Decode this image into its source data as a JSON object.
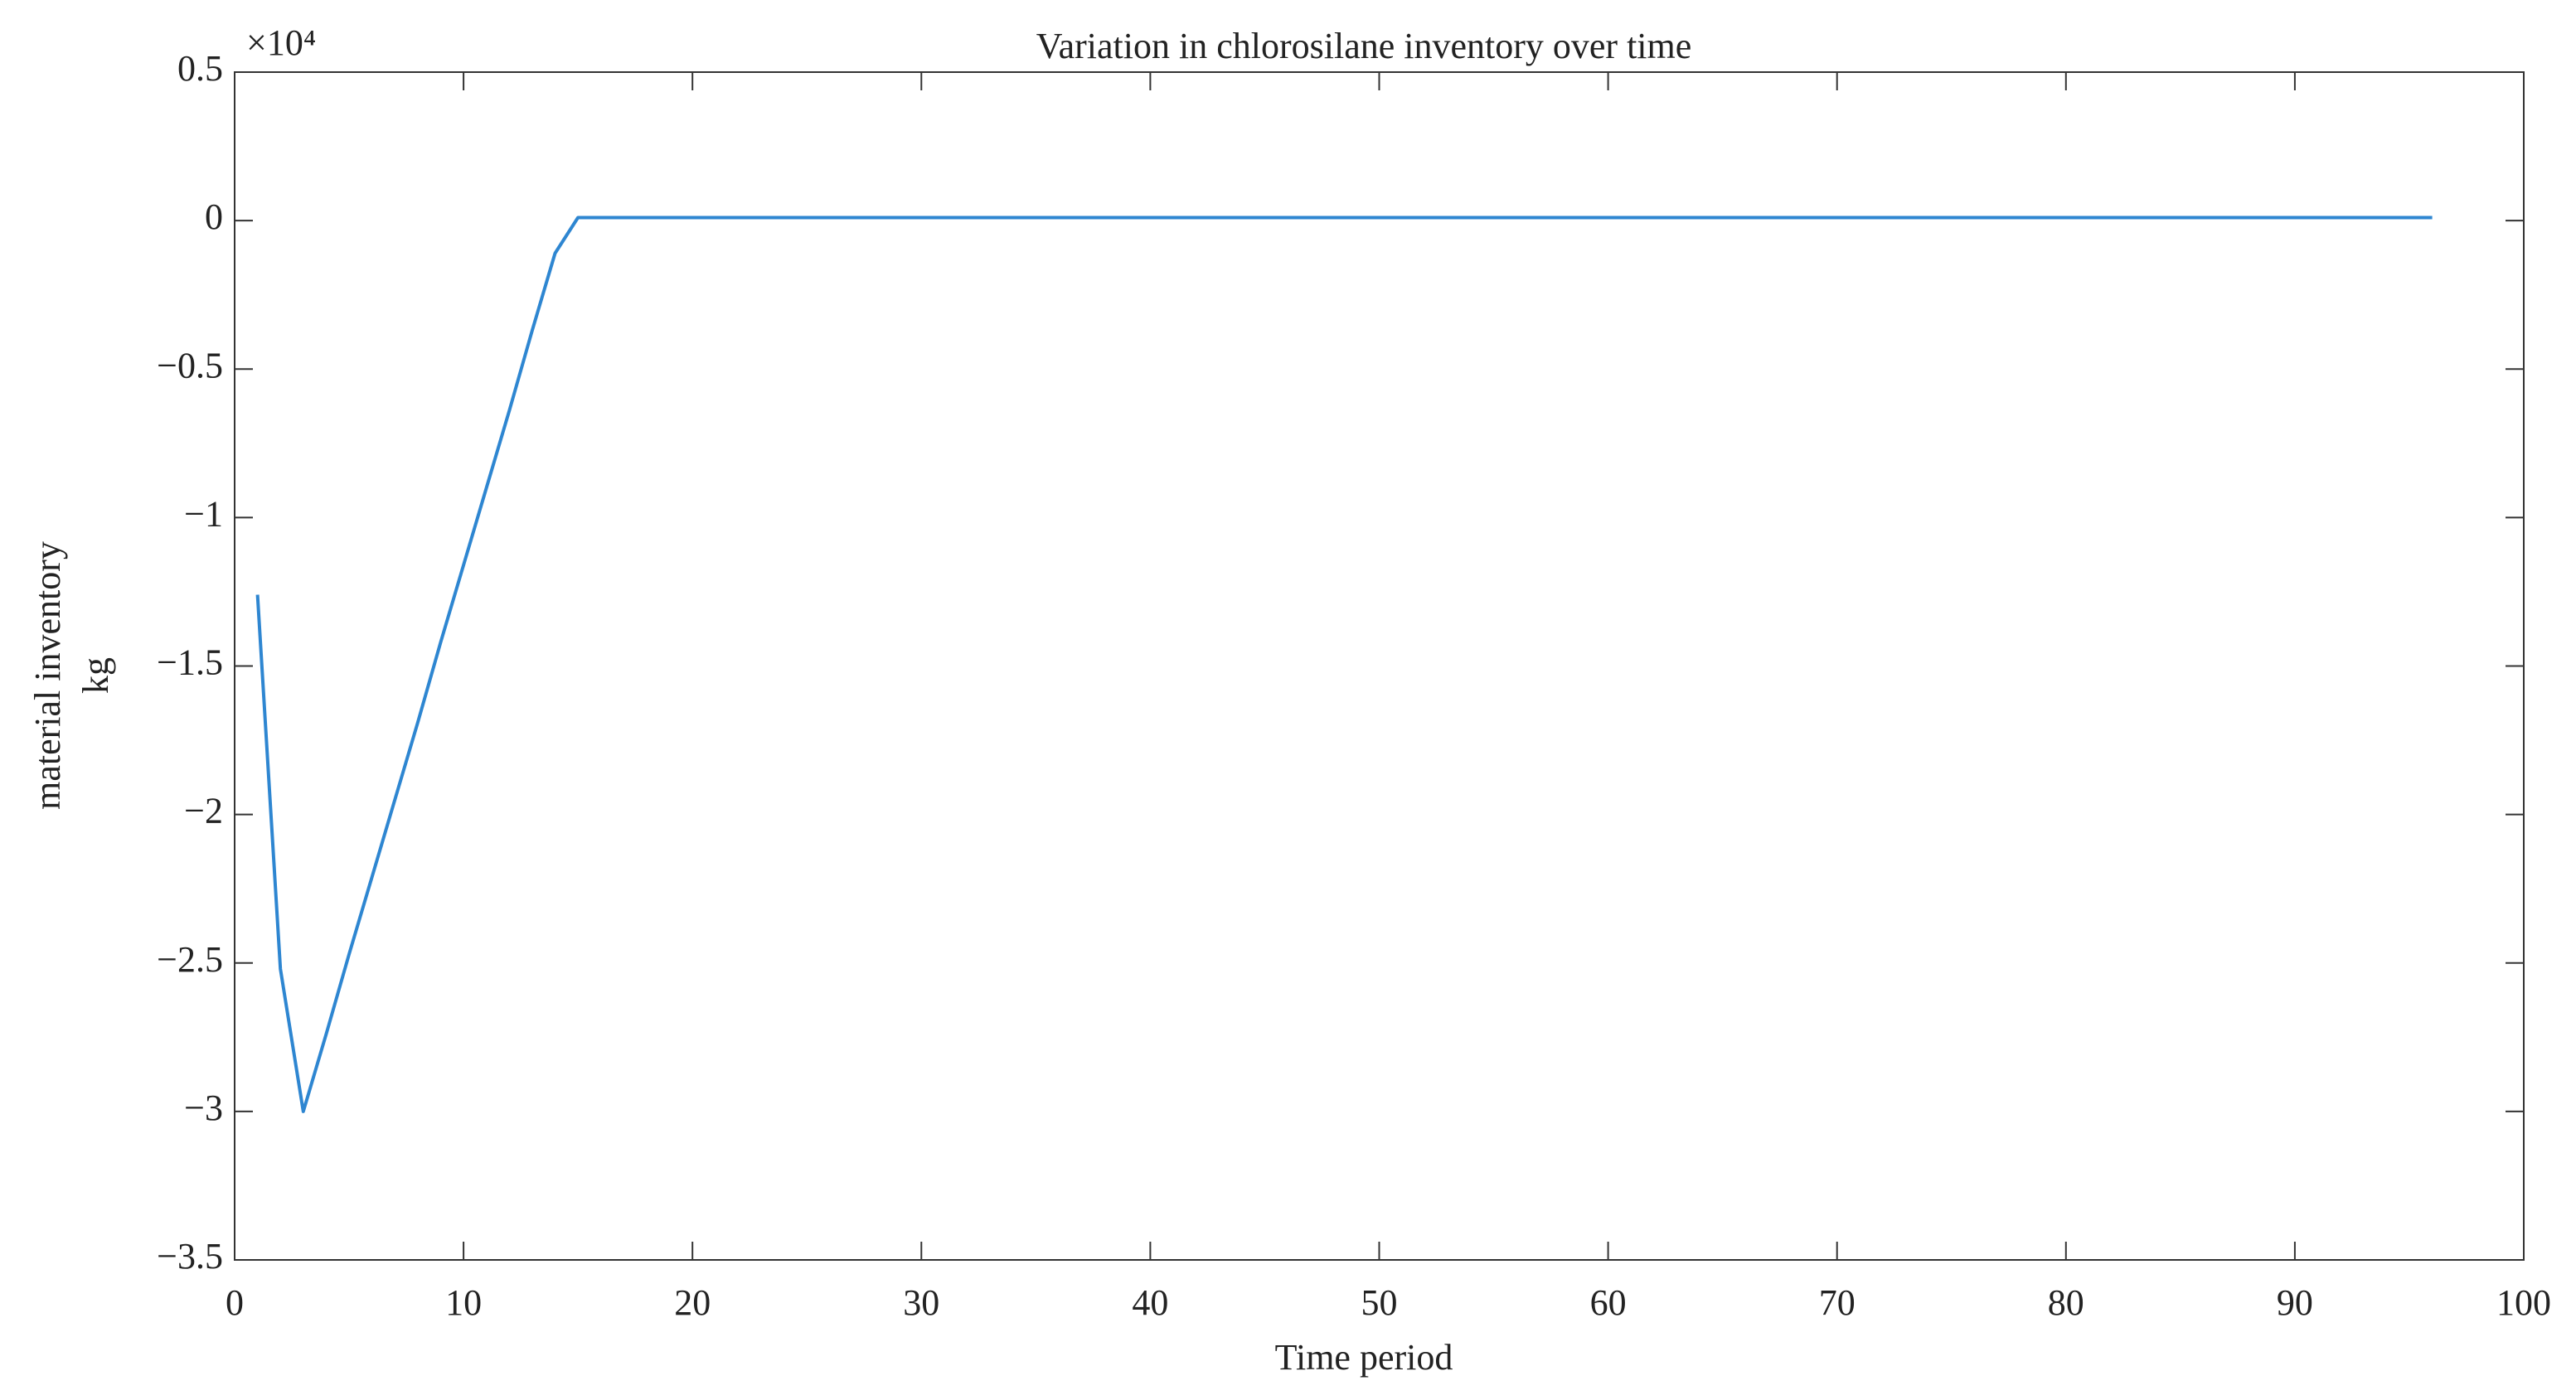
{
  "chart_data": {
    "type": "line",
    "title": "Variation in chlorosilane inventory over time",
    "xlabel": "Time period",
    "ylabel": [
      "material inventory",
      "kg"
    ],
    "y_multiplier": "×10⁴",
    "color": "#2e86d1",
    "x": [
      1,
      2,
      3,
      4,
      5,
      6,
      7,
      8,
      9,
      10,
      11,
      12,
      13,
      14,
      15,
      16,
      17,
      18,
      19,
      20,
      21,
      22,
      23,
      24,
      25,
      26,
      27,
      28,
      29,
      30,
      31,
      32,
      33,
      34,
      35,
      36,
      37,
      38,
      39,
      40,
      41,
      42,
      43,
      44,
      45,
      46,
      47,
      48,
      49,
      50,
      51,
      52,
      53,
      54,
      55,
      56,
      57,
      58,
      59,
      60,
      61,
      62,
      63,
      64,
      65,
      66,
      67,
      68,
      69,
      70,
      71,
      72,
      73,
      74,
      75,
      76,
      77,
      78,
      79,
      80,
      81,
      82,
      83,
      84,
      85,
      86,
      87,
      88,
      89,
      90,
      91,
      92,
      93,
      94,
      95,
      96
    ],
    "values": [
      -1.26,
      -2.52,
      -3.0,
      -2.74,
      -2.47,
      -2.21,
      -1.95,
      -1.69,
      -1.42,
      -1.16,
      -0.9,
      -0.64,
      -0.37,
      -0.11,
      0.01,
      0.01,
      0.01,
      0.01,
      0.01,
      0.01,
      0.01,
      0.01,
      0.01,
      0.01,
      0.01,
      0.01,
      0.01,
      0.01,
      0.01,
      0.01,
      0.01,
      0.01,
      0.01,
      0.01,
      0.01,
      0.01,
      0.01,
      0.01,
      0.01,
      0.01,
      0.01,
      0.01,
      0.01,
      0.01,
      0.01,
      0.01,
      0.01,
      0.01,
      0.01,
      0.01,
      0.01,
      0.01,
      0.01,
      0.01,
      0.01,
      0.01,
      0.01,
      0.01,
      0.01,
      0.01,
      0.01,
      0.01,
      0.01,
      0.01,
      0.01,
      0.01,
      0.01,
      0.01,
      0.01,
      0.01,
      0.01,
      0.01,
      0.01,
      0.01,
      0.01,
      0.01,
      0.01,
      0.01,
      0.01,
      0.01,
      0.01,
      0.01,
      0.01,
      0.01,
      0.01,
      0.01,
      0.01,
      0.01,
      0.01,
      0.01,
      0.01,
      0.01,
      0.01,
      0.01,
      0.01,
      0.01
    ],
    "xlim": [
      0,
      100
    ],
    "xticks": [
      0,
      10,
      20,
      30,
      40,
      50,
      60,
      70,
      80,
      90,
      100
    ],
    "ylim": [
      -3.5,
      0.5
    ],
    "yticks": [
      {
        "value": -3.5,
        "label": "−3.5"
      },
      {
        "value": -3,
        "label": "−3"
      },
      {
        "value": -2.5,
        "label": "−2.5"
      },
      {
        "value": -2,
        "label": "−2"
      },
      {
        "value": -1.5,
        "label": "−1.5"
      },
      {
        "value": -1,
        "label": "−1"
      },
      {
        "value": -0.5,
        "label": "−0.5"
      },
      0,
      0.5
    ]
  }
}
